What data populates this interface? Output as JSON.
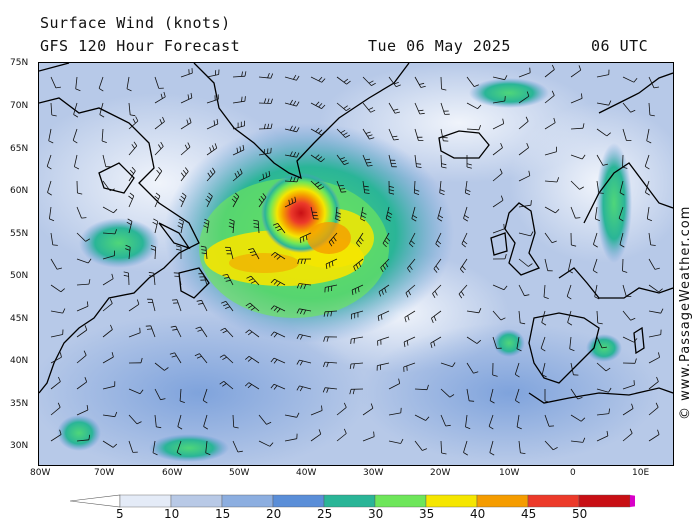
{
  "header": {
    "title": "Surface Wind (knots)",
    "subtitle": "GFS 120 Hour Forecast",
    "date": "Tue 06 May 2025",
    "time": "06 UTC"
  },
  "copyright": "© www.PassageWeather.com",
  "map": {
    "lat_labels": [
      "75N",
      "70N",
      "65N",
      "60N",
      "55N",
      "50N",
      "45N",
      "40N",
      "35N",
      "30N"
    ],
    "lon_labels": [
      "80W",
      "70W",
      "60W",
      "50W",
      "40W",
      "30W",
      "20W",
      "10W",
      "0",
      "10E"
    ],
    "lat_range": [
      28,
      75
    ],
    "lon_range": [
      -80,
      14
    ],
    "cyclone_center_lat": 57,
    "cyclone_center_lon": -42
  },
  "scale": {
    "labels": [
      "5",
      "10",
      "15",
      "20",
      "25",
      "30",
      "35",
      "40",
      "45",
      "50"
    ],
    "colors": [
      "#ffffff",
      "#e4ebf7",
      "#b8c9e6",
      "#8caee0",
      "#5a8ed8",
      "#2ab597",
      "#6ee65a",
      "#f5e600",
      "#f59c00",
      "#ec3a2a",
      "#c80f14",
      "#d800c8"
    ]
  }
}
